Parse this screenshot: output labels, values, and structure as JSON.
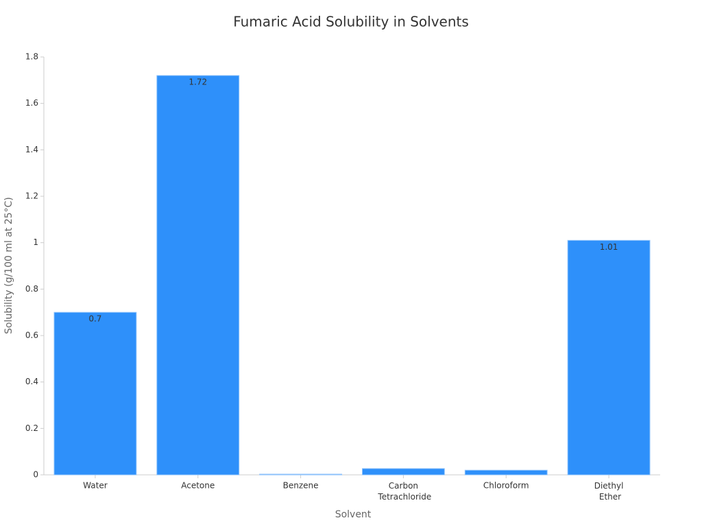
{
  "chart_data": {
    "type": "bar",
    "title": "Fumaric Acid Solubility in Solvents",
    "x_label": "Solvent",
    "y_label": "Solubility (g/100 ml at 25°C)",
    "categories": [
      "Water",
      "Acetone",
      "Benzene",
      "Carbon Tetrachloride",
      "Chloroform",
      "Diethyl Ether"
    ],
    "values": [
      0.7,
      1.72,
      0.003,
      0.027,
      0.02,
      1.01
    ],
    "value_labels": [
      "0.7",
      "1.72",
      null,
      null,
      null,
      "1.01"
    ],
    "color": "#2e90fa",
    "ylim": [
      0,
      1.8
    ],
    "yticks": [
      0,
      0.2,
      0.4,
      0.6,
      0.8,
      1,
      1.2,
      1.4,
      1.6,
      1.8
    ],
    "grid": false
  }
}
